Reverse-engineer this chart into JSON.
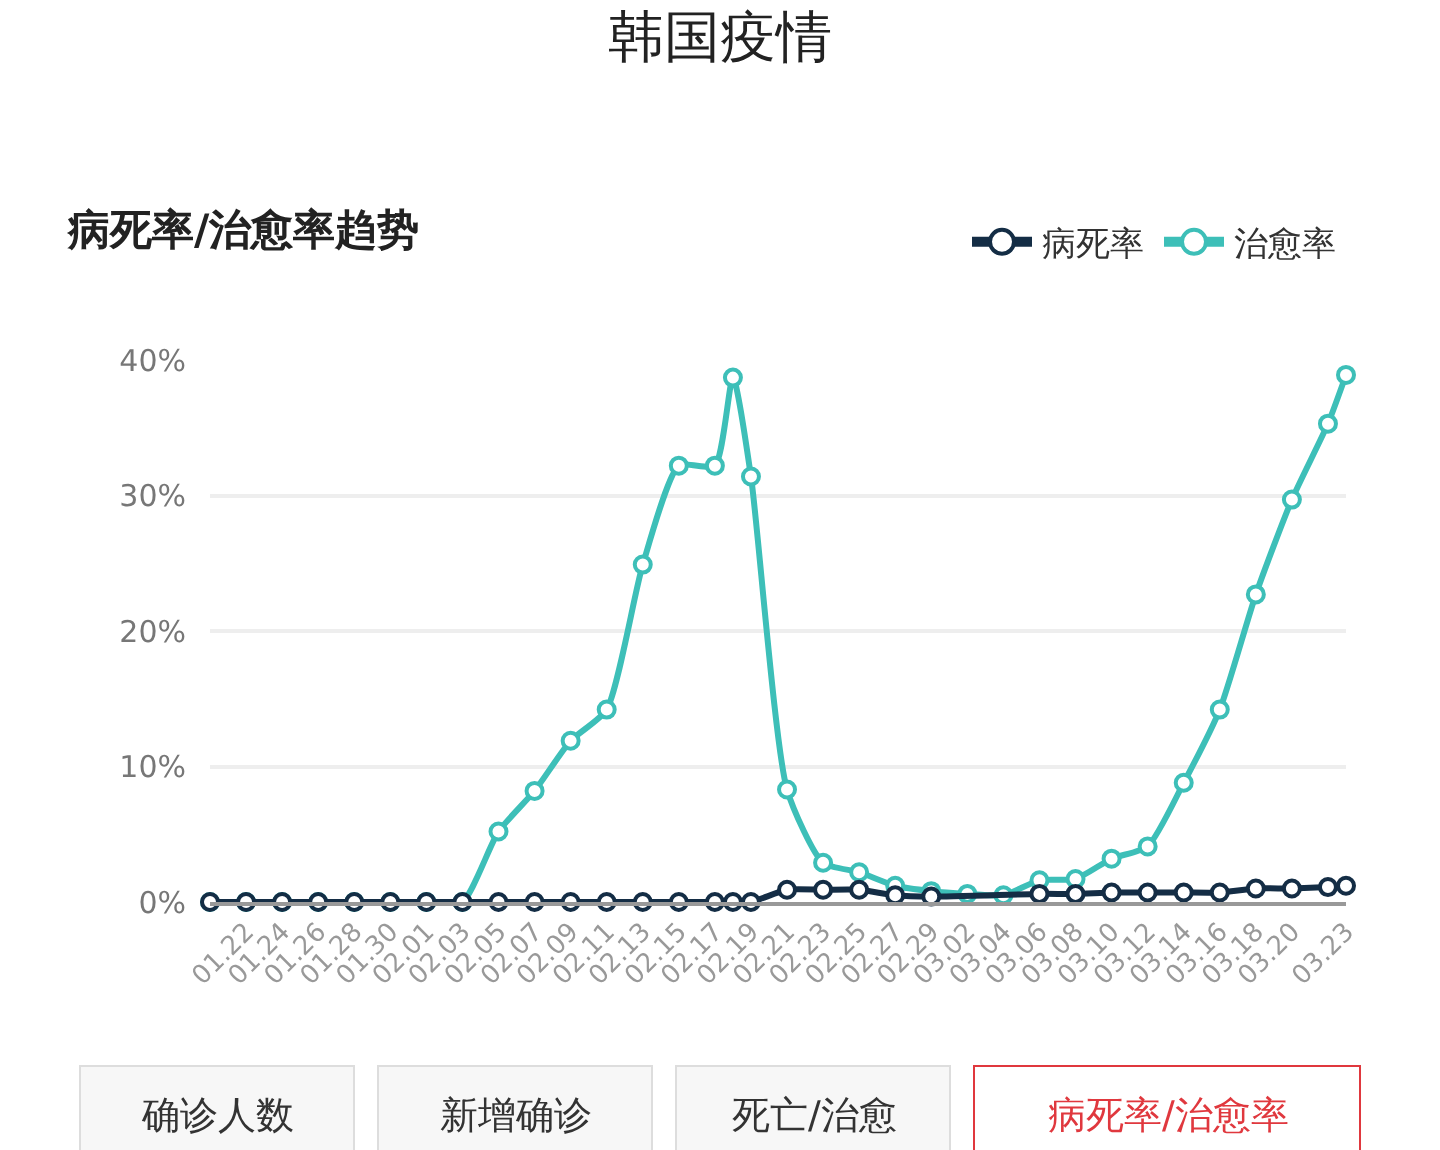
{
  "chart_data": {
    "type": "line",
    "title": "韩国疫情",
    "subtitle": "病死率/治愈率趋势",
    "x": [
      "--01-20",
      "--01-22",
      "--01-24",
      "--01-26",
      "--01-28",
      "--01-30",
      "--02-01",
      "--02-03",
      "--02-05",
      "--02-07",
      "--02-09",
      "--02-11",
      "--02-13",
      "--02-15",
      "--02-17",
      "--02-18",
      "--02-19",
      "--02-21",
      "--02-23",
      "--02-25",
      "--02-27",
      "--02-29",
      "--03-02",
      "--03-04",
      "--03-06",
      "--03-08",
      "--03-10",
      "--03-12",
      "--03-14",
      "--03-16",
      "--03-18",
      "--03-20",
      "--03-22",
      "--03-23"
    ],
    "series": [
      {
        "name": "病死率",
        "color": "#142d45",
        "values": [
          0,
          0,
          0,
          0,
          0,
          0,
          0,
          0,
          0,
          0,
          0,
          0,
          0,
          0,
          0,
          0,
          0,
          0.9,
          0.9,
          0.9,
          0.5,
          0.4,
          null,
          null,
          0.6,
          0.6,
          0.7,
          0.7,
          0.7,
          0.7,
          1.0,
          1.0,
          1.1,
          1.2
        ]
      },
      {
        "name": "治愈率",
        "color": "#3dbfb8",
        "values": [
          0,
          0,
          0,
          0,
          0,
          0,
          0,
          0,
          5.2,
          8.2,
          11.9,
          14.2,
          24.9,
          32.2,
          32.2,
          38.7,
          31.4,
          8.3,
          2.9,
          2.2,
          1.2,
          0.8,
          0.6,
          0.5,
          1.6,
          1.7,
          3.2,
          4.1,
          8.8,
          14.2,
          22.7,
          29.7,
          35.3,
          38.9
        ]
      }
    ],
    "xlim": [
      "--01-20",
      "--03-23"
    ],
    "xticks": [
      {
        "value": "--01-22",
        "label": "01.22"
      },
      {
        "value": "--01-24",
        "label": "01.24"
      },
      {
        "value": "--01-26",
        "label": "01.26"
      },
      {
        "value": "--01-28",
        "label": "01.28"
      },
      {
        "value": "--01-30",
        "label": "01.30"
      },
      {
        "value": "--02-01",
        "label": "02.01"
      },
      {
        "value": "--02-03",
        "label": "02.03"
      },
      {
        "value": "--02-05",
        "label": "02.05"
      },
      {
        "value": "--02-07",
        "label": "02.07"
      },
      {
        "value": "--02-09",
        "label": "02.09"
      },
      {
        "value": "--02-11",
        "label": "02.11"
      },
      {
        "value": "--02-13",
        "label": "02.13"
      },
      {
        "value": "--02-15",
        "label": "02.15"
      },
      {
        "value": "--02-17",
        "label": "02.17"
      },
      {
        "value": "--02-19",
        "label": "02.19"
      },
      {
        "value": "--02-21",
        "label": "02.21"
      },
      {
        "value": "--02-23",
        "label": "02.23"
      },
      {
        "value": "--02-25",
        "label": "02.25"
      },
      {
        "value": "--02-27",
        "label": "02.27"
      },
      {
        "value": "--02-29",
        "label": "02.29"
      },
      {
        "value": "--03-02",
        "label": "03.02"
      },
      {
        "value": "--03-04",
        "label": "03.04"
      },
      {
        "value": "--03-06",
        "label": "03.06"
      },
      {
        "value": "--03-08",
        "label": "03.08"
      },
      {
        "value": "--03-10",
        "label": "03.10"
      },
      {
        "value": "--03-12",
        "label": "03.12"
      },
      {
        "value": "--03-14",
        "label": "03.14"
      },
      {
        "value": "--03-16",
        "label": "03.16"
      },
      {
        "value": "--03-18",
        "label": "03.18"
      },
      {
        "value": "--03-20",
        "label": "03.20"
      },
      {
        "value": "--03-23",
        "label": "03.23"
      }
    ],
    "ylim": [
      0,
      40
    ],
    "yticks": [
      {
        "value": 0,
        "label": "0%"
      },
      {
        "value": 10,
        "label": "10%"
      },
      {
        "value": 20,
        "label": "20%"
      },
      {
        "value": 30,
        "label": "30%"
      },
      {
        "value": 40,
        "label": "40%"
      }
    ],
    "grid": "y",
    "legend": "top right",
    "marker": "circle",
    "line_style": "solid",
    "annotations": [
      "确诊人数",
      "新增确诊",
      "死亡/治愈",
      "病死率/治愈率"
    ]
  }
}
